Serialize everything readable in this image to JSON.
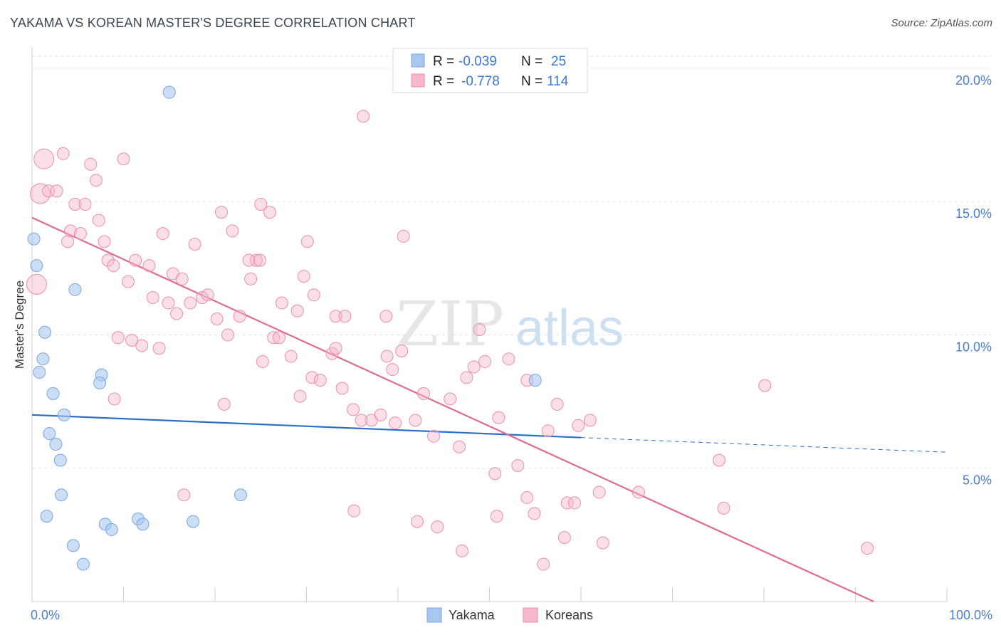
{
  "title": "YAKAMA VS KOREAN MASTER'S DEGREE CORRELATION CHART",
  "source": "Source: ZipAtlas.com",
  "watermark": {
    "zip": "ZIP",
    "atlas": "atlas"
  },
  "stats": [
    {
      "r_label": "R = ",
      "r_value": "-0.039",
      "n_label": "N = ",
      "n_value": "25"
    },
    {
      "r_label": "R = ",
      "r_value": "-0.778",
      "n_label": "N = ",
      "n_value": "114"
    }
  ],
  "chart_data": {
    "type": "scatter",
    "xlabel": "",
    "ylabel": "Master's Degree",
    "xlim": [
      0,
      100
    ],
    "ylim": [
      0,
      20.8
    ],
    "x_tick_labels": [
      {
        "value": 0,
        "label": "0.0%"
      },
      {
        "value": 100,
        "label": "100.0%"
      }
    ],
    "y_tick_labels": [
      {
        "value": 5,
        "label": "5.0%"
      },
      {
        "value": 10,
        "label": "10.0%"
      },
      {
        "value": 15,
        "label": "15.0%"
      },
      {
        "value": 20,
        "label": "20.0%"
      }
    ],
    "grid": true,
    "legend_position": "bottom-center",
    "colors": {
      "yakama_fill": "#a8c8f0",
      "yakama_stroke": "#7aa6dc",
      "yakama_line": "#2b6fc9",
      "koreans_fill": "#f7b8cb",
      "koreans_stroke": "#e98fab",
      "koreans_line": "#e06a93",
      "axis_text": "#4a7fcf"
    },
    "series": [
      {
        "name": "Yakama",
        "trend": {
          "x": [
            0,
            60
          ],
          "y": [
            7.0,
            6.15
          ],
          "dash_x": [
            60,
            100
          ],
          "dash_y": [
            6.15,
            5.6
          ]
        },
        "points": [
          {
            "x": 15,
            "y": 19.1
          },
          {
            "x": 0.2,
            "y": 13.6
          },
          {
            "x": 0.5,
            "y": 12.6
          },
          {
            "x": 4.7,
            "y": 11.7
          },
          {
            "x": 1.4,
            "y": 10.1
          },
          {
            "x": 1.2,
            "y": 9.1
          },
          {
            "x": 0.8,
            "y": 8.6
          },
          {
            "x": 7.6,
            "y": 8.5
          },
          {
            "x": 7.4,
            "y": 8.2
          },
          {
            "x": 2.3,
            "y": 7.8
          },
          {
            "x": 3.5,
            "y": 7.0
          },
          {
            "x": 1.9,
            "y": 6.3
          },
          {
            "x": 2.6,
            "y": 5.9
          },
          {
            "x": 3.1,
            "y": 5.3
          },
          {
            "x": 3.2,
            "y": 4.0
          },
          {
            "x": 1.6,
            "y": 3.2
          },
          {
            "x": 8.0,
            "y": 2.9
          },
          {
            "x": 8.7,
            "y": 2.7
          },
          {
            "x": 11.6,
            "y": 3.1
          },
          {
            "x": 12.1,
            "y": 2.9
          },
          {
            "x": 17.6,
            "y": 3.0
          },
          {
            "x": 22.8,
            "y": 4.0
          },
          {
            "x": 4.5,
            "y": 2.1
          },
          {
            "x": 5.6,
            "y": 1.4
          },
          {
            "x": 55.0,
            "y": 8.3
          }
        ]
      },
      {
        "name": "Koreans",
        "trend": {
          "x": [
            0,
            92
          ],
          "y": [
            14.4,
            0
          ]
        },
        "points": [
          {
            "x": 1.3,
            "y": 16.6,
            "big": true
          },
          {
            "x": 0.9,
            "y": 15.3,
            "big": true
          },
          {
            "x": 0.5,
            "y": 11.9,
            "big": true
          },
          {
            "x": 3.4,
            "y": 16.8
          },
          {
            "x": 6.4,
            "y": 16.4
          },
          {
            "x": 10.0,
            "y": 16.6
          },
          {
            "x": 7.0,
            "y": 15.8
          },
          {
            "x": 1.8,
            "y": 15.4
          },
          {
            "x": 2.7,
            "y": 15.4
          },
          {
            "x": 4.7,
            "y": 14.9
          },
          {
            "x": 5.8,
            "y": 14.9
          },
          {
            "x": 7.3,
            "y": 14.3
          },
          {
            "x": 4.2,
            "y": 13.9
          },
          {
            "x": 5.3,
            "y": 13.8
          },
          {
            "x": 3.9,
            "y": 13.5
          },
          {
            "x": 7.9,
            "y": 13.5
          },
          {
            "x": 8.3,
            "y": 12.8
          },
          {
            "x": 8.9,
            "y": 12.6
          },
          {
            "x": 11.3,
            "y": 12.8
          },
          {
            "x": 12.8,
            "y": 12.6
          },
          {
            "x": 14.3,
            "y": 13.8
          },
          {
            "x": 15.4,
            "y": 12.3
          },
          {
            "x": 16.4,
            "y": 12.1
          },
          {
            "x": 17.8,
            "y": 13.4
          },
          {
            "x": 20.7,
            "y": 14.6
          },
          {
            "x": 21.9,
            "y": 13.9
          },
          {
            "x": 24.5,
            "y": 12.8
          },
          {
            "x": 23.7,
            "y": 12.8
          },
          {
            "x": 25.0,
            "y": 14.9
          },
          {
            "x": 26.0,
            "y": 14.6
          },
          {
            "x": 24.9,
            "y": 12.8
          },
          {
            "x": 10.5,
            "y": 12.0
          },
          {
            "x": 13.2,
            "y": 11.4
          },
          {
            "x": 14.9,
            "y": 11.2
          },
          {
            "x": 15.8,
            "y": 10.8
          },
          {
            "x": 17.3,
            "y": 11.2
          },
          {
            "x": 18.6,
            "y": 11.4
          },
          {
            "x": 19.2,
            "y": 11.5
          },
          {
            "x": 20.2,
            "y": 10.6
          },
          {
            "x": 21.4,
            "y": 10.0
          },
          {
            "x": 22.7,
            "y": 10.7
          },
          {
            "x": 23.9,
            "y": 12.1
          },
          {
            "x": 27.3,
            "y": 11.2
          },
          {
            "x": 29.0,
            "y": 10.9
          },
          {
            "x": 29.7,
            "y": 12.2
          },
          {
            "x": 30.1,
            "y": 13.5
          },
          {
            "x": 30.8,
            "y": 11.5
          },
          {
            "x": 33.2,
            "y": 10.7
          },
          {
            "x": 34.2,
            "y": 10.7
          },
          {
            "x": 36.2,
            "y": 18.2
          },
          {
            "x": 38.7,
            "y": 10.7
          },
          {
            "x": 40.6,
            "y": 13.7
          },
          {
            "x": 9.4,
            "y": 9.9
          },
          {
            "x": 10.9,
            "y": 9.8
          },
          {
            "x": 12.0,
            "y": 9.6
          },
          {
            "x": 13.9,
            "y": 9.5
          },
          {
            "x": 25.2,
            "y": 9.0
          },
          {
            "x": 26.4,
            "y": 9.9
          },
          {
            "x": 27.0,
            "y": 9.9
          },
          {
            "x": 28.3,
            "y": 9.2
          },
          {
            "x": 29.3,
            "y": 7.7
          },
          {
            "x": 30.6,
            "y": 8.4
          },
          {
            "x": 31.5,
            "y": 8.3
          },
          {
            "x": 32.8,
            "y": 9.3
          },
          {
            "x": 33.2,
            "y": 9.5
          },
          {
            "x": 33.9,
            "y": 8.0
          },
          {
            "x": 35.1,
            "y": 7.2
          },
          {
            "x": 36.0,
            "y": 6.8
          },
          {
            "x": 37.1,
            "y": 6.8
          },
          {
            "x": 38.1,
            "y": 7.0
          },
          {
            "x": 38.8,
            "y": 9.2
          },
          {
            "x": 39.4,
            "y": 8.7
          },
          {
            "x": 39.7,
            "y": 6.7
          },
          {
            "x": 40.4,
            "y": 9.4
          },
          {
            "x": 41.9,
            "y": 6.8
          },
          {
            "x": 42.8,
            "y": 7.8
          },
          {
            "x": 43.9,
            "y": 6.2
          },
          {
            "x": 45.7,
            "y": 7.6
          },
          {
            "x": 46.7,
            "y": 5.8
          },
          {
            "x": 47.5,
            "y": 8.4
          },
          {
            "x": 48.3,
            "y": 8.8
          },
          {
            "x": 48.9,
            "y": 10.2
          },
          {
            "x": 49.5,
            "y": 9.0
          },
          {
            "x": 51.0,
            "y": 6.9
          },
          {
            "x": 52.1,
            "y": 9.1
          },
          {
            "x": 53.1,
            "y": 5.1
          },
          {
            "x": 54.1,
            "y": 8.3
          },
          {
            "x": 56.4,
            "y": 6.4
          },
          {
            "x": 57.4,
            "y": 7.4
          },
          {
            "x": 59.7,
            "y": 6.6
          },
          {
            "x": 61.0,
            "y": 6.8
          },
          {
            "x": 80.1,
            "y": 8.1
          },
          {
            "x": 9.0,
            "y": 7.6
          },
          {
            "x": 21.0,
            "y": 7.4
          },
          {
            "x": 16.6,
            "y": 4.0
          },
          {
            "x": 35.2,
            "y": 3.4
          },
          {
            "x": 42.1,
            "y": 3.0
          },
          {
            "x": 44.3,
            "y": 2.8
          },
          {
            "x": 47.0,
            "y": 1.9
          },
          {
            "x": 50.6,
            "y": 4.8
          },
          {
            "x": 50.8,
            "y": 3.2
          },
          {
            "x": 54.1,
            "y": 3.9
          },
          {
            "x": 54.9,
            "y": 3.3
          },
          {
            "x": 55.9,
            "y": 1.4
          },
          {
            "x": 58.2,
            "y": 2.4
          },
          {
            "x": 58.5,
            "y": 3.7
          },
          {
            "x": 59.3,
            "y": 3.7
          },
          {
            "x": 62.0,
            "y": 4.1
          },
          {
            "x": 62.4,
            "y": 2.2
          },
          {
            "x": 66.3,
            "y": 4.1
          },
          {
            "x": 75.1,
            "y": 5.3
          },
          {
            "x": 75.6,
            "y": 3.5
          },
          {
            "x": 91.3,
            "y": 2.0
          }
        ]
      }
    ]
  }
}
